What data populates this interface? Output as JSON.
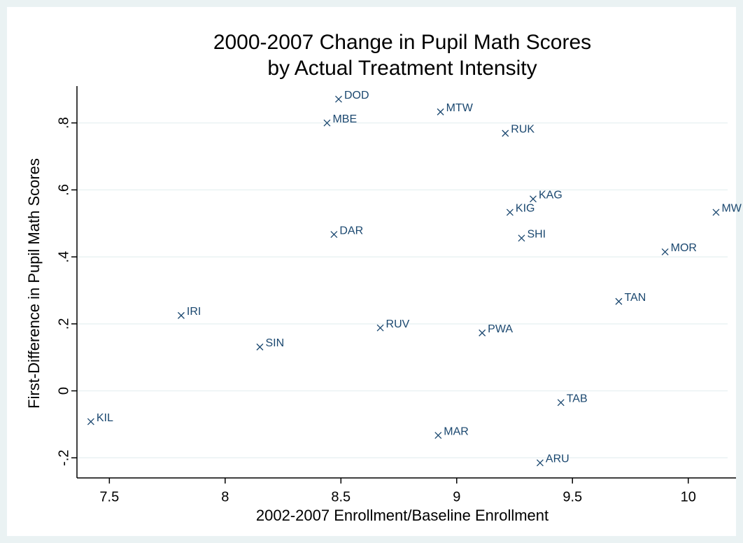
{
  "chart_data": {
    "type": "scatter",
    "title": "2000-2007 Change in Pupil Math Scores",
    "subtitle": "by Actual Treatment Intensity",
    "x_label": "2002-2007 Enrollment/Baseline Enrollment",
    "y_label": "First-Difference in Pupil Math Scores",
    "labels": [
      "DOD",
      "MBE",
      "MTW",
      "RUK",
      "KAG",
      "KIG",
      "MW",
      "DAR",
      "SHI",
      "MOR",
      "TAN",
      "IRI",
      "RUV",
      "PWA",
      "SIN",
      "TAB",
      "KIL",
      "MAR",
      "ARU"
    ],
    "x": [
      8.49,
      8.44,
      8.93,
      9.21,
      9.33,
      9.23,
      10.12,
      8.47,
      9.28,
      9.9,
      9.7,
      7.81,
      8.67,
      9.11,
      8.15,
      9.45,
      7.42,
      8.92,
      9.36
    ],
    "values": [
      0.871,
      0.8,
      0.833,
      0.769,
      0.573,
      0.533,
      0.533,
      0.467,
      0.456,
      0.415,
      0.267,
      0.225,
      0.188,
      0.173,
      0.131,
      -0.035,
      -0.092,
      -0.133,
      -0.215
    ],
    "color": "#1a476f",
    "xlim": [
      7.36,
      10.17
    ],
    "ylim": [
      -0.26,
      0.91
    ],
    "xticks": [
      7.5,
      8,
      8.5,
      9,
      9.5,
      10
    ],
    "yticks": [
      {
        "value": -0.2,
        "label": "-.2"
      },
      0,
      {
        "value": 0.2,
        "label": ".2"
      },
      {
        "value": 0.4,
        "label": ".4"
      },
      {
        "value": 0.6,
        "label": ".6"
      },
      {
        "value": 0.8,
        "label": ".8"
      }
    ],
    "grid": true
  }
}
